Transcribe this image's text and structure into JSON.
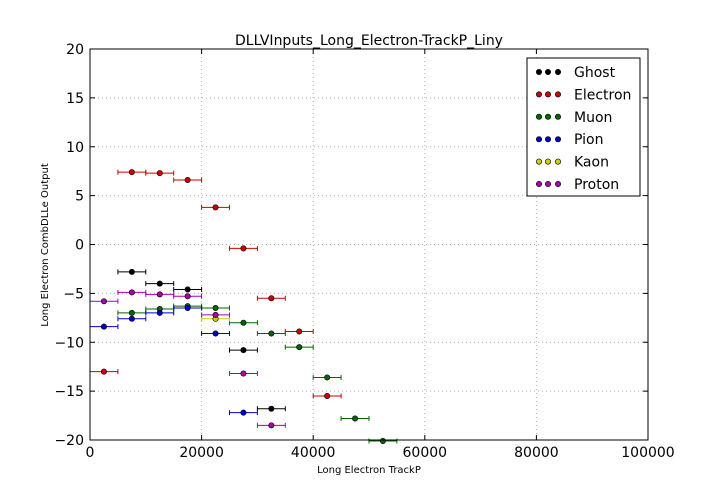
{
  "chart_data": {
    "type": "scatter",
    "title": "DLLVInputs_Long_Electron-TrackP_Liny",
    "xlabel": "Long Electron TrackP",
    "ylabel": "Long Electron CombDLLe Output",
    "xlim": [
      0,
      100000
    ],
    "ylim": [
      -20,
      20
    ],
    "xticks": [
      0,
      20000,
      40000,
      60000,
      80000,
      100000
    ],
    "xtick_labels": [
      "0",
      "20000",
      "40000",
      "60000",
      "80000",
      "100000"
    ],
    "yticks": [
      -20,
      -15,
      -10,
      -5,
      0,
      5,
      10,
      15,
      20
    ],
    "ytick_labels": [
      "−20",
      "−15",
      "−10",
      "−5",
      "0",
      "5",
      "10",
      "15",
      "20"
    ],
    "grid": true,
    "legend_position": "top-right",
    "x_bin_half_width": 2500,
    "series": [
      {
        "name": "Ghost",
        "color": "#000000",
        "points": [
          [
            7500,
            -2.8
          ],
          [
            12500,
            -4.0
          ],
          [
            17500,
            -4.6
          ],
          [
            27500,
            -10.8
          ],
          [
            32500,
            -16.8
          ]
        ]
      },
      {
        "name": "Electron",
        "color": "#cc0000",
        "points": [
          [
            2500,
            -13.0
          ],
          [
            7500,
            7.4
          ],
          [
            12500,
            7.3
          ],
          [
            17500,
            6.6
          ],
          [
            22500,
            3.8
          ],
          [
            27500,
            -0.4
          ],
          [
            32500,
            -5.5
          ],
          [
            37500,
            -8.9
          ],
          [
            42500,
            -15.5
          ]
        ]
      },
      {
        "name": "Muon",
        "color": "#006600",
        "points": [
          [
            7500,
            -7.0
          ],
          [
            12500,
            -6.6
          ],
          [
            17500,
            -6.3
          ],
          [
            22500,
            -6.5
          ],
          [
            27500,
            -8.0
          ],
          [
            32500,
            -9.1
          ],
          [
            37500,
            -10.5
          ],
          [
            42500,
            -13.6
          ],
          [
            47500,
            -17.8
          ],
          [
            52500,
            -20.1
          ]
        ]
      },
      {
        "name": "Pion",
        "color": "#0000cc",
        "points": [
          [
            2500,
            -8.4
          ],
          [
            7500,
            -7.6
          ],
          [
            12500,
            -7.0
          ],
          [
            17500,
            -6.5
          ],
          [
            22500,
            -9.1
          ],
          [
            27500,
            -17.2
          ]
        ]
      },
      {
        "name": "Kaon",
        "color": "#cccc00",
        "points": [
          [
            22500,
            -7.6
          ]
        ]
      },
      {
        "name": "Proton",
        "color": "#aa00aa",
        "points": [
          [
            2500,
            -5.8
          ],
          [
            7500,
            -4.9
          ],
          [
            12500,
            -5.1
          ],
          [
            17500,
            -5.3
          ],
          [
            22500,
            -7.2
          ],
          [
            27500,
            -13.2
          ],
          [
            32500,
            -18.5
          ]
        ]
      }
    ]
  }
}
